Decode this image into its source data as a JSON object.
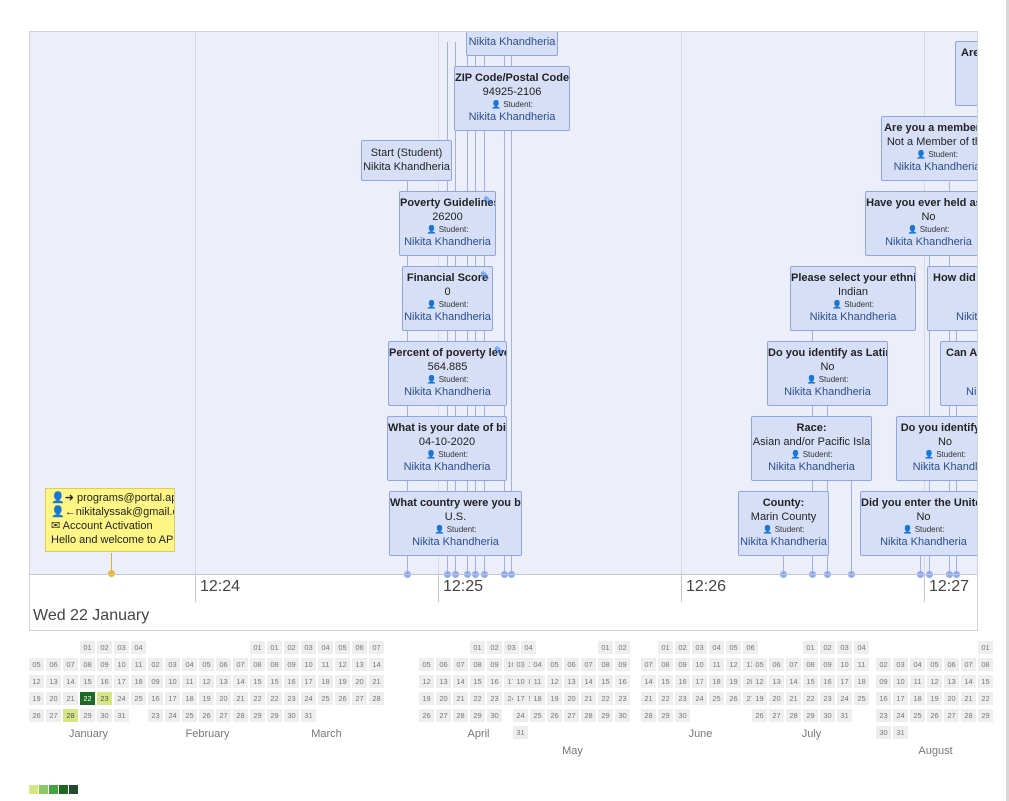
{
  "timeline": {
    "date_label": "Wed 22 January",
    "ticks": [
      "12:24",
      "12:25",
      "12:26",
      "12:27"
    ],
    "mail": {
      "from": "programs@portal.apia",
      "to": "nikitalyssak@gmail.c",
      "subject": "Account Activation",
      "body": "Hello and welcome to AP"
    },
    "cards": [
      {
        "title": "",
        "value": "",
        "role": "",
        "name": "Nikita Khandheria"
      },
      {
        "title": "ZIP Code/Postal Code:",
        "value": "94925-2106",
        "role": "Student:",
        "name": "Nikita Khandheria"
      },
      {
        "title": "",
        "value": "Start (Student)",
        "role": "",
        "name": "Nikita Khandheria"
      },
      {
        "title": "Poverty Guidelines",
        "value": "26200",
        "role": "Student:",
        "name": "Nikita Khandheria"
      },
      {
        "title": "Financial Score",
        "value": "0",
        "role": "Student:",
        "name": "Nikita Khandheria"
      },
      {
        "title": "Percent of poverty level",
        "value": "564.885",
        "role": "Student:",
        "name": "Nikita Khandheria"
      },
      {
        "title": "What is your date of birt",
        "value": "04-10-2020",
        "role": "Student:",
        "name": "Nikita Khandheria"
      },
      {
        "title": "What country were you bor",
        "value": "U.S.",
        "role": "Student:",
        "name": "Nikita Khandheria"
      },
      {
        "title": "Are",
        "value": "",
        "role": "",
        "name": ""
      },
      {
        "title": "Are you a member o",
        "value": "Not a Member of the",
        "role": "Student:",
        "name": "Nikita Khandheria"
      },
      {
        "title": "Have you ever held asyl",
        "value": "No",
        "role": "Student:",
        "name": "Nikita Khandheria"
      },
      {
        "title": "Please select your ethnic",
        "value": "Indian",
        "role": "Student:",
        "name": "Nikita Khandheria"
      },
      {
        "title": "How did y",
        "value": "",
        "role": "",
        "name": "Nikita"
      },
      {
        "title": "Do you identify as Latin(",
        "value": "No",
        "role": "Student:",
        "name": "Nikita Khandheria"
      },
      {
        "title": "Can AP",
        "value": "",
        "role": "",
        "name": "Ni"
      },
      {
        "title": "Race:",
        "value": "Asian and/or Pacific Isla",
        "role": "Student:",
        "name": "Nikita Khandheria"
      },
      {
        "title": "Do you identify a",
        "value": "No",
        "role": "Student:",
        "name": "Nikita Khandl"
      },
      {
        "title": "County:",
        "value": "Marin County",
        "role": "Student:",
        "name": "Nikita Khandheria"
      },
      {
        "title": "Did you enter the United",
        "value": "No",
        "role": "Student:",
        "name": "Nikita Khandheria"
      }
    ]
  },
  "calendar": {
    "months": [
      "January",
      "February",
      "March",
      "April",
      "May",
      "June",
      "July",
      "August"
    ],
    "days_in_month": [
      31,
      29,
      31,
      30,
      31,
      30,
      31,
      31
    ],
    "start_weekday": [
      3,
      6,
      0,
      3,
      5,
      1,
      3,
      6
    ],
    "activity": [
      {
        "month": 0,
        "day": 22,
        "level": 4
      },
      {
        "month": 0,
        "day": 23,
        "level": 1
      },
      {
        "month": 0,
        "day": 28,
        "level": 1
      }
    ],
    "legend_colors": [
      "#d6e685",
      "#8cc665",
      "#44a340",
      "#1e6823",
      "#234a2a"
    ]
  }
}
